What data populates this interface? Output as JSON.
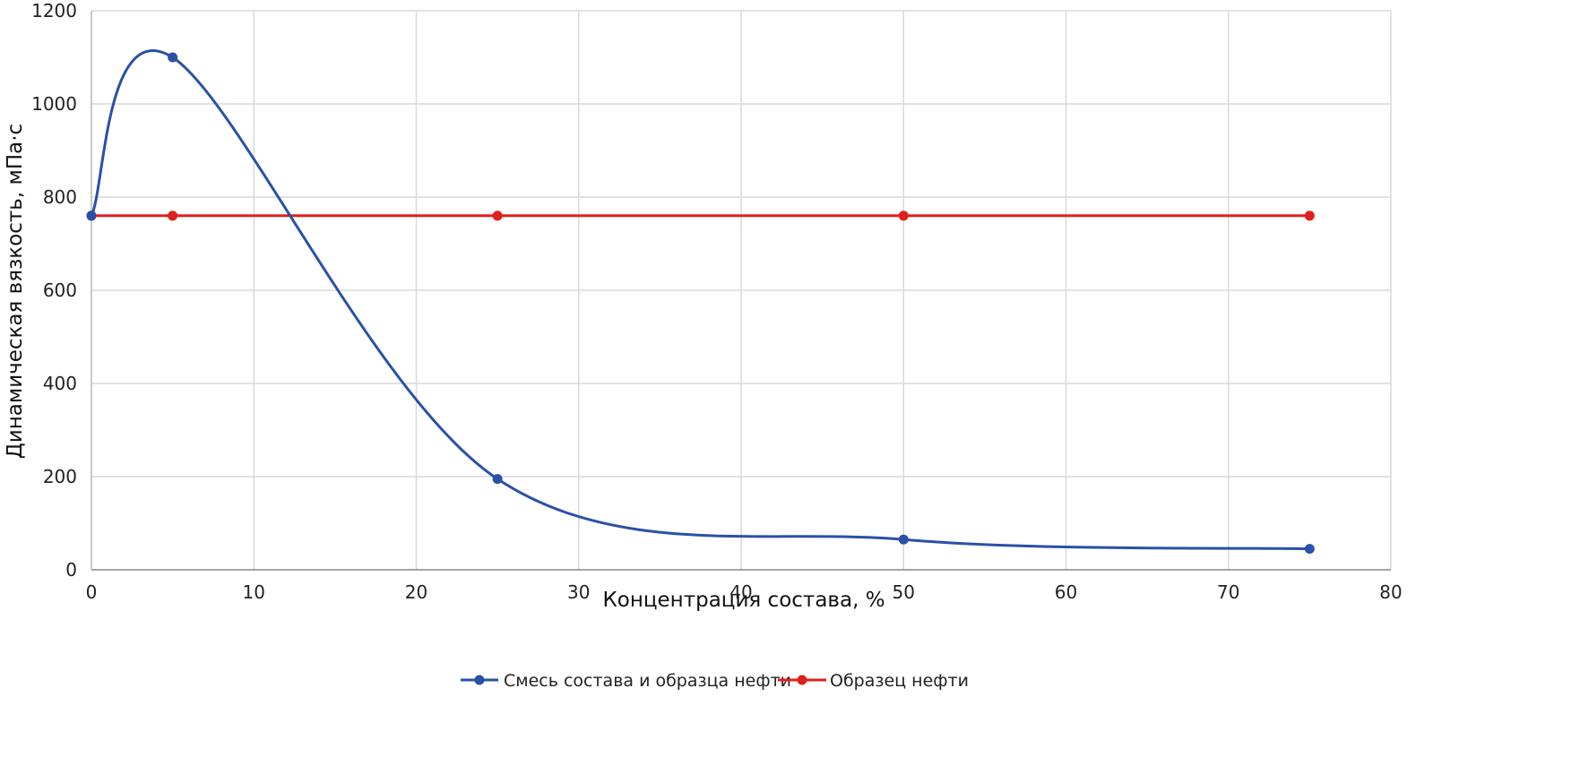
{
  "chart_data": {
    "type": "line",
    "title": "",
    "xlabel": "Концентрация состава, %",
    "ylabel": "Динамическая вязкость, мПа·с",
    "xlim": [
      0,
      80
    ],
    "ylim": [
      0,
      1200
    ],
    "xticks": [
      0,
      10,
      20,
      30,
      40,
      50,
      60,
      70,
      80
    ],
    "yticks": [
      0,
      200,
      400,
      600,
      800,
      1000,
      1200
    ],
    "grid": true,
    "legend_position": "bottom",
    "series": [
      {
        "name": "Смесь состава и образца нефти",
        "color": "#2a50a8",
        "smooth": true,
        "x": [
          0,
          5,
          25,
          50,
          75
        ],
        "y": [
          760,
          1100,
          195,
          65,
          45
        ]
      },
      {
        "name": "Образец нефти",
        "color": "#e0201b",
        "smooth": false,
        "x": [
          0,
          5,
          25,
          50,
          75
        ],
        "y": [
          760,
          760,
          760,
          760,
          760
        ]
      }
    ]
  }
}
